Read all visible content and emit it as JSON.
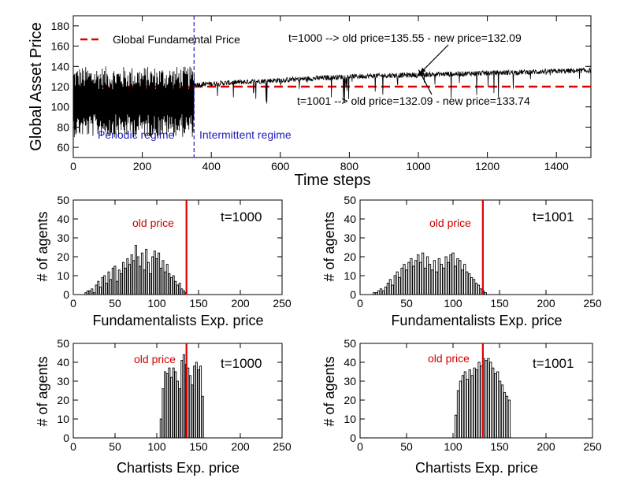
{
  "chart_data": [
    {
      "id": "main",
      "type": "line",
      "ylabel": "Global Asset Price",
      "xlabel": "Time steps",
      "xlim": [
        0,
        1500
      ],
      "ylim": [
        50,
        190
      ],
      "xticks": [
        0,
        200,
        400,
        600,
        800,
        1000,
        1200,
        1400
      ],
      "yticks": [
        60,
        80,
        100,
        120,
        140,
        160,
        180
      ],
      "series": [
        {
          "name": "Global Asset Price",
          "color": "#000000",
          "segments": [
            {
              "x_start": 0,
              "x_end": 350,
              "regime": "periodic",
              "low": 70,
              "high": 140
            },
            {
              "x_start": 350,
              "x_end": 800,
              "regime": "intermittent",
              "base_start": 122,
              "base_end": 130,
              "dips_to": 103
            },
            {
              "x_start": 800,
              "x_end": 1500,
              "regime": "intermittent",
              "base_start": 130,
              "base_end": 136,
              "dips_to": 108
            }
          ]
        },
        {
          "name": "Global Fundamental Price",
          "color": "#dd0000",
          "value": 120
        }
      ],
      "legend": {
        "label": "Global Fundamental Price",
        "position": "top-left"
      },
      "regime_boundary_x": 350,
      "regime_labels": [
        "Periodic regime",
        "Intermittent regime"
      ],
      "annotations": [
        {
          "text": "t=1000 --> old price=135.55 - new price=132.09",
          "arrow_to": [
            1000,
            133
          ]
        },
        {
          "text": "t=1001 --> old price=132.09 - new price=133.74",
          "arrow_to": [
            1001,
            121
          ]
        }
      ]
    },
    {
      "id": "fund1000",
      "type": "bar",
      "ylabel": "# of agents",
      "xlabel": "Fundamentalists Exp. price",
      "xlim": [
        0,
        250
      ],
      "ylim": [
        0,
        50
      ],
      "xticks": [
        0,
        50,
        100,
        150,
        200,
        250
      ],
      "yticks": [
        0,
        10,
        20,
        30,
        40,
        50
      ],
      "label": "t=1000",
      "old_price": 135.55,
      "old_price_label": "old price",
      "bin_start": 14,
      "bin_width": 2.5,
      "values": [
        1,
        2,
        2,
        3,
        1,
        5,
        7,
        4,
        9,
        10,
        6,
        12,
        8,
        14,
        15,
        7,
        13,
        11,
        17,
        14,
        19,
        16,
        21,
        18,
        26,
        20,
        15,
        22,
        13,
        24,
        17,
        11,
        20,
        23,
        19,
        22,
        14,
        18,
        12,
        16,
        11,
        9,
        10,
        7,
        5,
        6,
        3,
        2,
        1
      ]
    },
    {
      "id": "fund1001",
      "type": "bar",
      "ylabel": "# of agents",
      "xlabel": "Fundamentalists Exp. price",
      "xlim": [
        0,
        250
      ],
      "ylim": [
        0,
        50
      ],
      "xticks": [
        0,
        50,
        100,
        150,
        200,
        250
      ],
      "yticks": [
        0,
        10,
        20,
        30,
        40,
        50
      ],
      "label": "t=1001",
      "old_price": 132.09,
      "old_price_label": "old price",
      "bin_start": 14,
      "bin_width": 2.5,
      "values": [
        1,
        1,
        2,
        3,
        2,
        4,
        6,
        8,
        5,
        10,
        12,
        9,
        14,
        16,
        13,
        17,
        19,
        15,
        18,
        21,
        17,
        22,
        14,
        20,
        16,
        13,
        18,
        12,
        19,
        16,
        14,
        20,
        17,
        21,
        22,
        15,
        19,
        18,
        13,
        16,
        12,
        11,
        9,
        8,
        6,
        5,
        3,
        2,
        1
      ]
    },
    {
      "id": "chart1000",
      "type": "bar",
      "ylabel": "# of agents",
      "xlabel": "Chartists Exp. price",
      "xlim": [
        0,
        250
      ],
      "ylim": [
        0,
        50
      ],
      "xticks": [
        0,
        50,
        100,
        150,
        200,
        250
      ],
      "yticks": [
        0,
        10,
        20,
        30,
        40,
        50
      ],
      "label": "t=1000",
      "old_price": 135.55,
      "old_price_label": "old price",
      "bin_start": 104,
      "bin_width": 2.5,
      "values": [
        10,
        26,
        35,
        34,
        37,
        32,
        37,
        35,
        30,
        26,
        41,
        44,
        39,
        37,
        33,
        28,
        38,
        40,
        36,
        38,
        22
      ]
    },
    {
      "id": "chart1001",
      "type": "bar",
      "ylabel": "# of agents",
      "xlabel": "Chartists Exp. price",
      "xlim": [
        0,
        250
      ],
      "ylim": [
        0,
        50
      ],
      "xticks": [
        0,
        50,
        100,
        150,
        200,
        250
      ],
      "yticks": [
        0,
        10,
        20,
        30,
        40,
        50
      ],
      "label": "t=1001",
      "old_price": 132.09,
      "old_price_label": "old price",
      "bin_start": 102,
      "bin_width": 2.5,
      "values": [
        12,
        25,
        30,
        33,
        35,
        31,
        36,
        33,
        37,
        36,
        40,
        38,
        42,
        41,
        42,
        40,
        37,
        34,
        35,
        30,
        28,
        24,
        22,
        20
      ]
    }
  ]
}
